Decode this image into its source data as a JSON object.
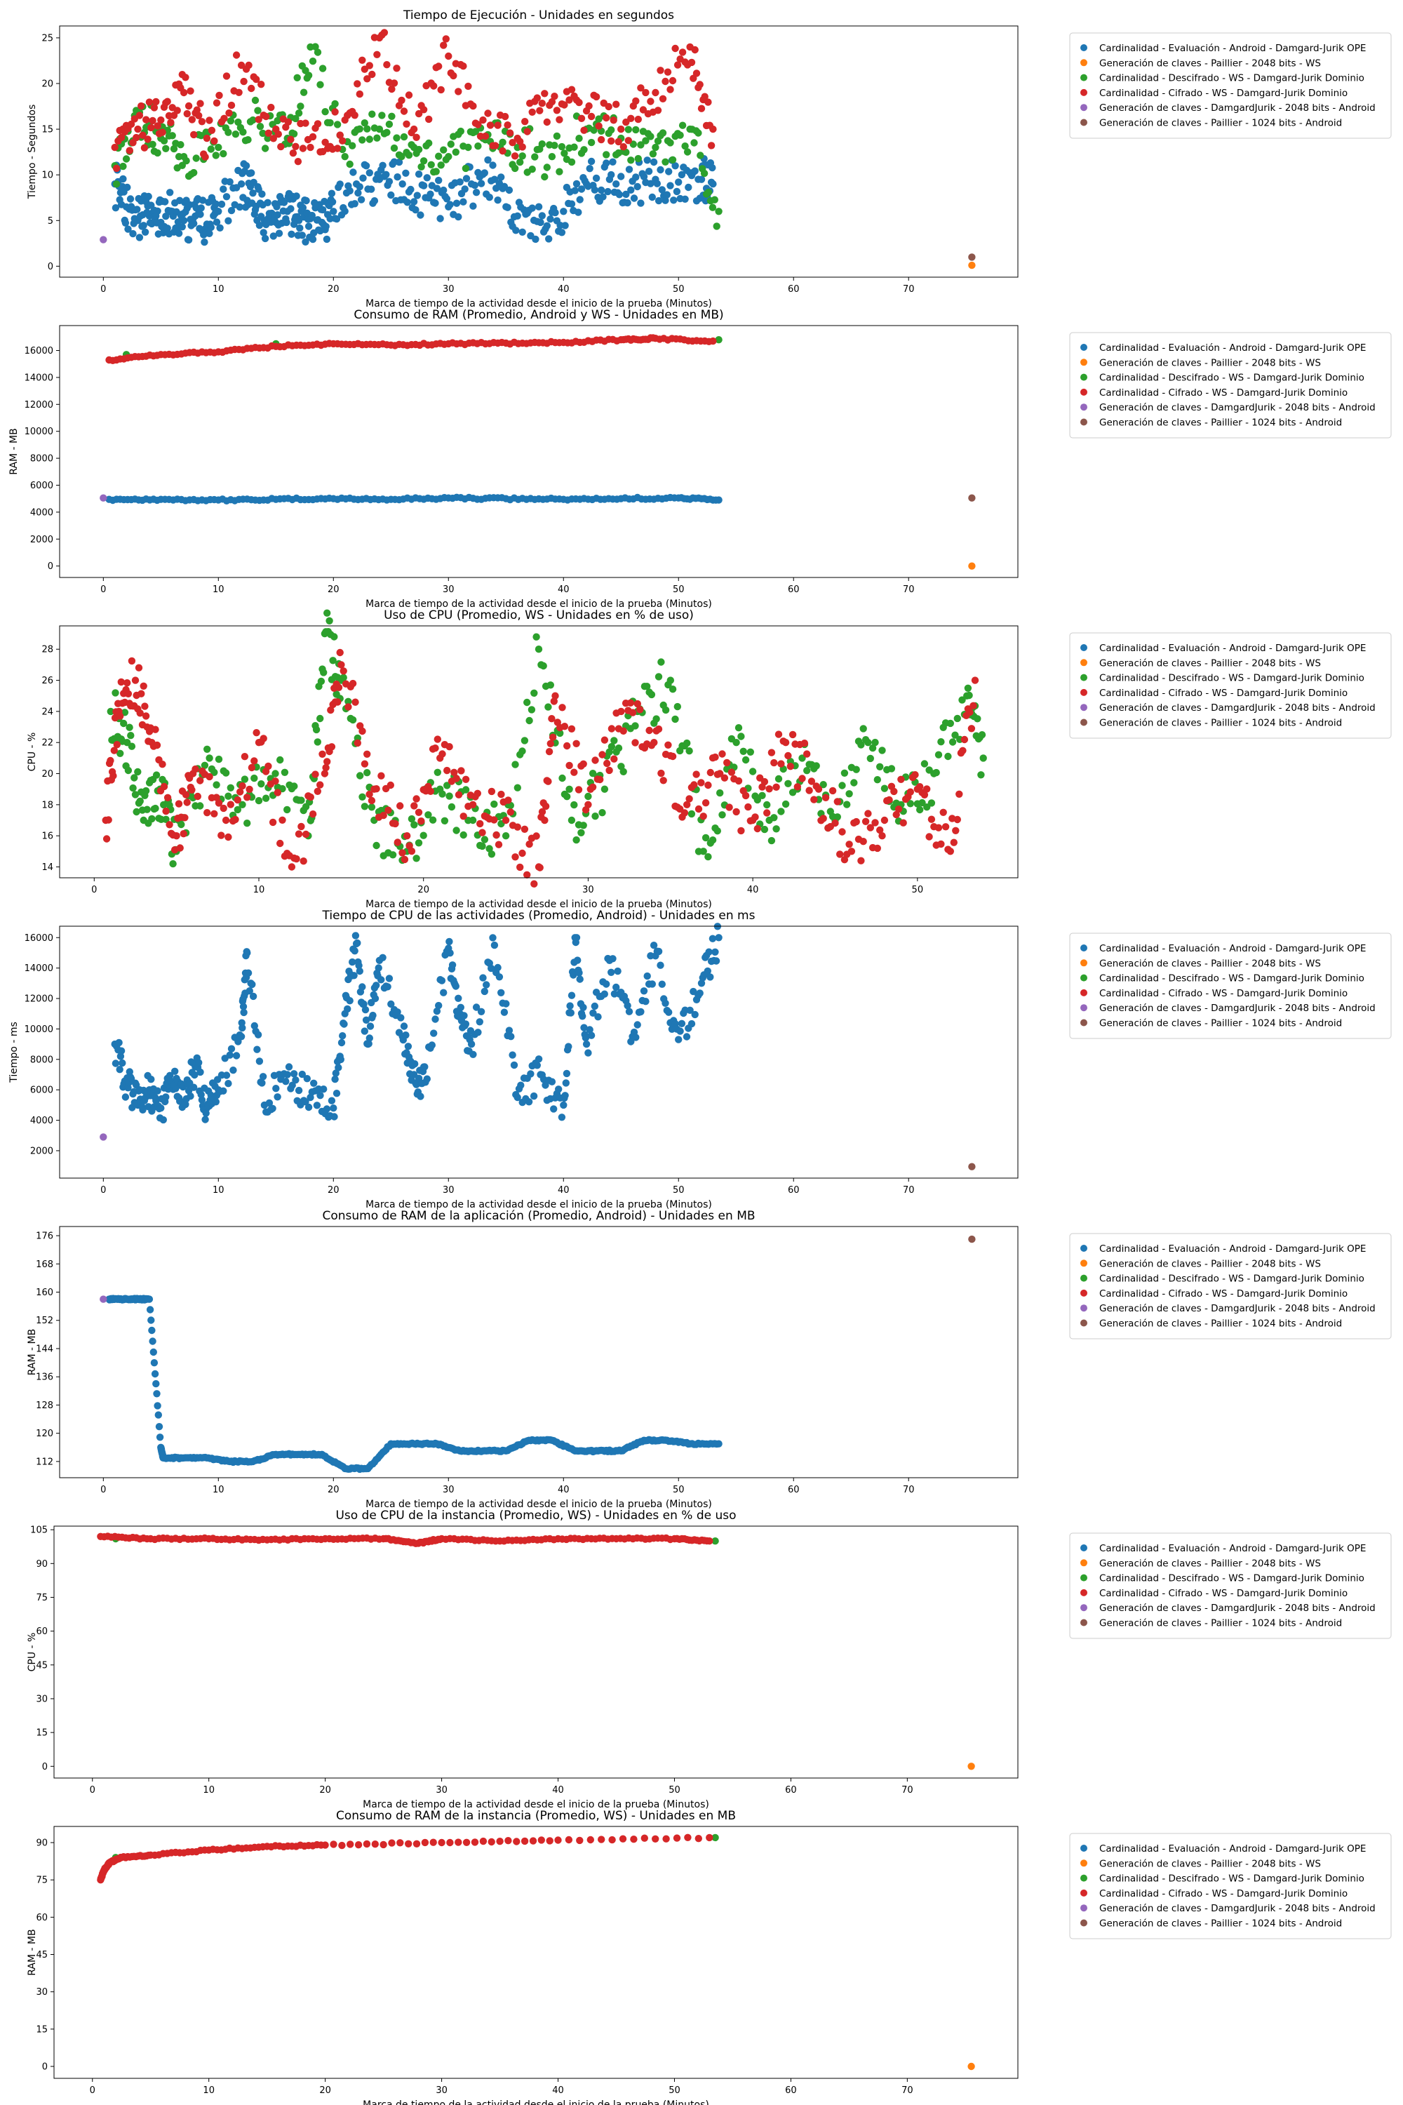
{
  "legend_entries": [
    {
      "label": "Cardinalidad - Evaluación - Android - Damgard-Jurik OPE",
      "color": "#1f77b4"
    },
    {
      "label": "Generación de claves - Paillier - 2048 bits - WS",
      "color": "#ff7f0e"
    },
    {
      "label": "Cardinalidad - Descifrado - WS - Damgard-Jurik Dominio",
      "color": "#2ca02c"
    },
    {
      "label": "Cardinalidad - Cifrado - WS - Damgard-Jurik Dominio",
      "color": "#d62728"
    },
    {
      "label": "Generación de claves - DamgardJurik - 2048 bits - Android",
      "color": "#9467bd"
    },
    {
      "label": "Generación de claves - Paillier - 1024 bits - Android",
      "color": "#8c564b"
    }
  ],
  "chart_data": [
    {
      "type": "scatter",
      "title": "Tiempo de Ejecución - Unidades en segundos",
      "xlabel": "Marca de tiempo de la actividad desde el inicio de la prueba (Minutos)",
      "ylabel": "Tiempo - Segundos",
      "xlim": [
        -3.8,
        79.5
      ],
      "ylim": [
        -1.2,
        26.3
      ],
      "xticks": [
        0,
        10,
        20,
        30,
        40,
        50,
        60,
        70
      ],
      "yticks": [
        0,
        5,
        10,
        15,
        20,
        25
      ],
      "legend": "outside-right",
      "grid": false,
      "series": [
        {
          "name": "Cardinalidad - Evaluación - Android - Damgard-Jurik OPE",
          "color": "#1f77b4",
          "x": [
            1,
            2,
            3,
            4,
            5,
            6,
            7,
            8,
            9,
            10,
            12,
            13,
            14,
            15,
            16,
            17,
            18,
            19,
            20,
            22,
            24,
            26,
            28,
            30,
            32,
            34,
            36,
            38,
            40,
            42,
            44,
            46,
            48,
            50,
            52,
            53
          ],
          "y": [
            9,
            6.5,
            5,
            5.5,
            4.8,
            6,
            5,
            5.5,
            4.6,
            6,
            9,
            8,
            5,
            4.8,
            6,
            5,
            5.2,
            4.8,
            6,
            9,
            9.5,
            9,
            7.5,
            6.5,
            9,
            9.5,
            5.5,
            4.8,
            6,
            9,
            9.5,
            9.3,
            9.5,
            9.2,
            9.5,
            9
          ]
        },
        {
          "name": "Generación de claves - Paillier - 2048 bits - WS",
          "color": "#ff7f0e",
          "x": [
            75.5
          ],
          "y": [
            0.1
          ]
        },
        {
          "name": "Cardinalidad - Descifrado - WS - Damgard-Jurik Dominio",
          "color": "#2ca02c",
          "x": [
            1,
            3,
            5,
            7,
            10,
            13,
            16,
            18,
            21,
            24,
            27,
            30,
            33,
            36,
            39,
            42,
            45,
            48,
            51,
            53.5
          ],
          "y": [
            11,
            17,
            14,
            12,
            13,
            16,
            14,
            24,
            12,
            15,
            13,
            12,
            14,
            13,
            12,
            15,
            14,
            13,
            15,
            6
          ]
        },
        {
          "name": "Cardinalidad - Cifrado - WS - Damgard-Jurik Dominio",
          "color": "#d62728",
          "x": [
            1,
            3,
            5,
            7,
            9,
            12,
            15,
            18,
            21,
            24,
            27,
            30,
            33,
            36,
            39,
            42,
            45,
            48,
            51,
            53
          ],
          "y": [
            13,
            15,
            16,
            19,
            14,
            22,
            15,
            13,
            16,
            25,
            15,
            23,
            16,
            14,
            18,
            17,
            15,
            19,
            24,
            15
          ]
        },
        {
          "name": "Generación de claves - DamgardJurik - 2048 bits - Android",
          "color": "#9467bd",
          "x": [
            0
          ],
          "y": [
            2.9
          ]
        },
        {
          "name": "Generación de claves - Paillier - 1024 bits - Android",
          "color": "#8c564b",
          "x": [
            75.5
          ],
          "y": [
            1.0
          ]
        }
      ]
    },
    {
      "type": "scatter",
      "title": "Consumo de RAM (Promedio, Android y WS - Unidades en MB)",
      "xlabel": "Marca de tiempo de la actividad desde el inicio de la prueba (Minutos)",
      "ylabel": "RAM - MB",
      "xlim": [
        -3.8,
        79.5
      ],
      "ylim": [
        -850,
        17850
      ],
      "xticks": [
        0,
        10,
        20,
        30,
        40,
        50,
        60,
        70
      ],
      "yticks": [
        0,
        2000,
        4000,
        6000,
        8000,
        10000,
        12000,
        14000,
        16000
      ],
      "legend": "outside-right",
      "grid": false,
      "series": [
        {
          "name": "Cardinalidad - Evaluación - Android - Damgard-Jurik OPE",
          "color": "#1f77b4",
          "x": [
            0.5,
            5,
            10,
            15,
            20,
            25,
            30,
            35,
            40,
            45,
            50,
            53.5
          ],
          "y": [
            4950,
            4950,
            4900,
            4950,
            5000,
            4950,
            5050,
            5000,
            4950,
            5000,
            5050,
            4900
          ]
        },
        {
          "name": "Generación de claves - Paillier - 2048 bits - WS",
          "color": "#ff7f0e",
          "x": [
            75.5
          ],
          "y": [
            0
          ]
        },
        {
          "name": "Cardinalidad - Descifrado - WS - Damgard-Jurik Dominio",
          "color": "#2ca02c",
          "x": [
            2,
            15,
            53.5
          ],
          "y": [
            15700,
            16500,
            16800
          ]
        },
        {
          "name": "Cardinalidad - Cifrado - WS - Damgard-Jurik Dominio",
          "color": "#d62728",
          "x": [
            0.5,
            5,
            10,
            15,
            20,
            25,
            30,
            35,
            40,
            45,
            48,
            53
          ],
          "y": [
            15300,
            15700,
            15900,
            16300,
            16500,
            16400,
            16500,
            16550,
            16600,
            16800,
            16900,
            16700
          ]
        },
        {
          "name": "Generación de claves - DamgardJurik - 2048 bits - Android",
          "color": "#9467bd",
          "x": [
            0
          ],
          "y": [
            5050
          ]
        },
        {
          "name": "Generación de claves - Paillier - 1024 bits - Android",
          "color": "#8c564b",
          "x": [
            75.5
          ],
          "y": [
            5050
          ]
        }
      ]
    },
    {
      "type": "scatter",
      "title": "Uso de CPU (Promedio, WS - Unidades en % de uso)",
      "xlabel": "Marca de tiempo de la actividad desde el inicio de la prueba (Minutos)",
      "ylabel": "CPU - %",
      "xlim": [
        -2.1,
        56.1
      ],
      "ylim": [
        13.3,
        29.5
      ],
      "xticks": [
        0,
        10,
        20,
        30,
        40,
        50
      ],
      "yticks": [
        14,
        16,
        18,
        20,
        22,
        24,
        26,
        28
      ],
      "legend": "outside-right",
      "grid": false,
      "series": [
        {
          "name": "Cardinalidad - Descifrado - WS - Damgard-Jurik Dominio",
          "color": "#2ca02c",
          "x": [
            1,
            2,
            3,
            4,
            5,
            7,
            9,
            11,
            13,
            14,
            15,
            17,
            19,
            21,
            23,
            25,
            27,
            29,
            31,
            33,
            35,
            37,
            39,
            41,
            43,
            45,
            47,
            49,
            51,
            53,
            54
          ],
          "y": [
            24,
            22,
            17,
            19,
            15,
            21,
            18,
            20,
            16,
            29,
            26,
            17,
            15,
            19,
            17,
            16,
            28,
            17,
            19,
            24,
            26,
            15,
            22,
            17,
            21,
            17,
            22,
            18,
            20,
            25,
            21
          ]
        },
        {
          "name": "Cardinalidad - Cifrado - WS - Damgard-Jurik Dominio",
          "color": "#d62728",
          "x": [
            0.7,
            1.5,
            2.5,
            3.5,
            5,
            6,
            8,
            10,
            12,
            14,
            15,
            17,
            19,
            21,
            23,
            25,
            27,
            28,
            30,
            32,
            34,
            36,
            38,
            40,
            42,
            44,
            46,
            48,
            50,
            52,
            53.5
          ],
          "y": [
            17,
            24,
            26,
            22,
            16,
            20,
            17,
            22,
            14,
            20,
            27,
            19,
            16,
            21,
            18,
            17,
            14,
            25,
            18,
            24,
            22,
            18,
            20,
            17,
            22,
            19,
            15,
            17,
            19,
            15,
            26
          ]
        }
      ]
    },
    {
      "type": "scatter",
      "title": "Tiempo de CPU de las actividades (Promedio, Android) - Unidades en ms",
      "xlabel": "Marca de tiempo de la actividad desde el inicio de la prueba (Minutos)",
      "ylabel": "Tiempo - ms",
      "xlim": [
        -3.8,
        79.5
      ],
      "ylim": [
        200,
        16750
      ],
      "xticks": [
        0,
        10,
        20,
        30,
        40,
        50,
        60,
        70
      ],
      "yticks": [
        2000,
        4000,
        6000,
        8000,
        10000,
        12000,
        14000,
        16000
      ],
      "legend": "outside-right",
      "grid": false,
      "series": [
        {
          "name": "Cardinalidad - Evaluación - Android - Damgard-Jurik OPE",
          "color": "#1f77b4",
          "x": [
            1,
            2,
            3,
            4,
            5,
            6,
            7,
            8,
            9,
            10,
            12,
            12.5,
            14,
            16,
            18,
            20,
            21,
            22,
            23,
            24,
            26,
            27,
            28,
            30,
            31,
            32,
            34,
            36,
            38,
            40,
            41,
            42,
            44,
            46,
            48,
            50,
            52,
            53.5
          ],
          "y": [
            9000,
            6500,
            5000,
            6000,
            4800,
            6500,
            5200,
            7500,
            4800,
            6000,
            9500,
            15000,
            5000,
            7000,
            5500,
            4800,
            11000,
            15600,
            9000,
            14500,
            9500,
            7000,
            6500,
            15300,
            11000,
            9000,
            15500,
            5500,
            7000,
            5000,
            16000,
            9000,
            14500,
            9500,
            14800,
            9300,
            13000,
            16000
          ]
        },
        {
          "name": "Generación de claves - DamgardJurik - 2048 bits - Android",
          "color": "#9467bd",
          "x": [
            0
          ],
          "y": [
            2900
          ]
        },
        {
          "name": "Generación de claves - Paillier - 1024 bits - Android",
          "color": "#8c564b",
          "x": [
            75.5
          ],
          "y": [
            950
          ]
        }
      ]
    },
    {
      "type": "scatter",
      "title": "Consumo de RAM de la aplicación (Promedio, Android) - Unidades en MB",
      "xlabel": "Marca de tiempo de la actividad desde el inicio de la prueba (Minutos)",
      "ylabel": "RAM - MB",
      "xlim": [
        -3.8,
        79.5
      ],
      "ylim": [
        107.4,
        178.6
      ],
      "xticks": [
        0,
        10,
        20,
        30,
        40,
        50,
        60,
        70
      ],
      "yticks": [
        112,
        120,
        128,
        136,
        144,
        152,
        160,
        168,
        176
      ],
      "legend": "outside-right",
      "grid": false,
      "series": [
        {
          "name": "Cardinalidad - Evaluación - Android - Damgard-Jurik OPE",
          "color": "#1f77b4",
          "x": [
            0.5,
            1,
            2,
            3,
            4,
            5,
            5.2,
            7,
            9,
            11,
            13,
            15,
            17,
            19,
            21,
            23,
            25,
            27,
            29,
            31,
            33,
            35,
            37,
            39,
            41,
            43,
            45,
            47,
            49,
            51,
            53.5
          ],
          "y": [
            158,
            158,
            158,
            158,
            158,
            116,
            113,
            113,
            113,
            112,
            112,
            114,
            114,
            114,
            110,
            110,
            117,
            117,
            117,
            115,
            115,
            115,
            118,
            118,
            115,
            115,
            115,
            118,
            118,
            117,
            117
          ]
        },
        {
          "name": "Generación de claves - DamgardJurik - 2048 bits - Android",
          "color": "#9467bd",
          "x": [
            0
          ],
          "y": [
            158
          ]
        },
        {
          "name": "Generación de claves - Paillier - 1024 bits - Android",
          "color": "#8c564b",
          "x": [
            75.5
          ],
          "y": [
            175
          ]
        }
      ]
    },
    {
      "type": "scatter",
      "title": "Uso de CPU de la instancia (Promedio, WS) - Unidades en % de uso",
      "xlabel": "Marca de tiempo de la actividad desde el inicio de la prueba (Minutos)",
      "ylabel": "CPU - %",
      "xlim": [
        -3.3,
        79.5
      ],
      "ylim": [
        -5.2,
        106.6
      ],
      "xticks": [
        0,
        10,
        20,
        30,
        40,
        50,
        60,
        70
      ],
      "yticks": [
        0,
        15,
        30,
        45,
        60,
        75,
        90,
        105
      ],
      "legend": "outside-right",
      "grid": false,
      "series": [
        {
          "name": "Generación de claves - Paillier - 2048 bits - WS",
          "color": "#ff7f0e",
          "x": [
            75.5
          ],
          "y": [
            0
          ]
        },
        {
          "name": "Cardinalidad - Descifrado - WS - Damgard-Jurik Dominio",
          "color": "#2ca02c",
          "x": [
            2,
            53.5
          ],
          "y": [
            101,
            100
          ]
        },
        {
          "name": "Cardinalidad - Cifrado - WS - Damgard-Jurik Dominio",
          "color": "#d62728",
          "x": [
            0.7,
            5,
            10,
            15,
            20,
            25,
            28,
            30,
            35,
            40,
            45,
            50,
            53
          ],
          "y": [
            102,
            101,
            101,
            100.5,
            101,
            101,
            99,
            101,
            100,
            101,
            101,
            101,
            100
          ]
        }
      ]
    },
    {
      "type": "scatter",
      "title": "Consumo de RAM de la instancia (Promedio, WS) - Unidades en MB",
      "xlabel": "Marca de tiempo de la actividad desde el inicio de la prueba (Minutos)",
      "ylabel": "RAM - MB",
      "xlim": [
        -3.3,
        79.5
      ],
      "ylim": [
        -4.8,
        96.5
      ],
      "xticks": [
        0,
        10,
        20,
        30,
        40,
        50,
        60,
        70
      ],
      "yticks": [
        0,
        15,
        30,
        45,
        60,
        75,
        90
      ],
      "legend": "outside-right",
      "grid": false,
      "series": [
        {
          "name": "Generación de claves - Paillier - 2048 bits - WS",
          "color": "#ff7f0e",
          "x": [
            75.5
          ],
          "y": [
            0
          ]
        },
        {
          "name": "Cardinalidad - Descifrado - WS - Damgard-Jurik Dominio",
          "color": "#2ca02c",
          "x": [
            2,
            53.5
          ],
          "y": [
            84,
            92
          ]
        },
        {
          "name": "Cardinalidad - Cifrado - WS - Damgard-Jurik Dominio",
          "color": "#d62728",
          "x": [
            0.7,
            1,
            1.5,
            2.5,
            5,
            10,
            15,
            20,
            30,
            40,
            53
          ],
          "y": [
            75,
            79,
            82,
            84,
            85,
            87,
            88.5,
            89,
            90,
            91,
            92
          ]
        }
      ]
    }
  ]
}
